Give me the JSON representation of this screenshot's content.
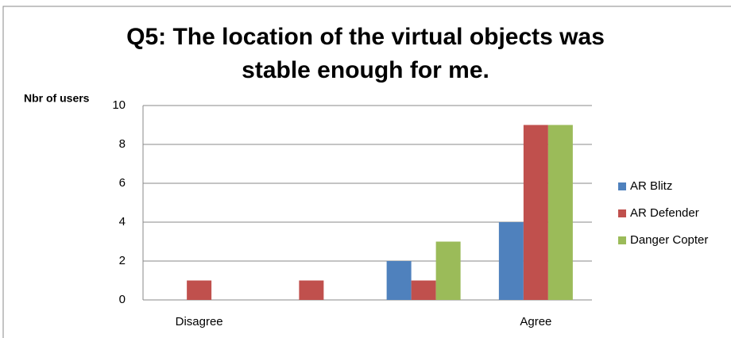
{
  "chart_data": {
    "type": "bar",
    "title": "Q5: The location of the virtual objects was stable enough for me.",
    "y_label": "Nbr of users",
    "categories": [
      "Disagree",
      null,
      null,
      "Agree"
    ],
    "series": [
      {
        "name": "AR Blitz",
        "color": "#4f81bd",
        "values": [
          0,
          0,
          2,
          4
        ]
      },
      {
        "name": "AR Defender",
        "color": "#c0504d",
        "values": [
          1,
          1,
          1,
          9
        ]
      },
      {
        "name": "Danger Copter",
        "color": "#9bbb59",
        "values": [
          0,
          0,
          3,
          9
        ]
      }
    ],
    "ylim": [
      0,
      10
    ],
    "yticks": [
      0,
      2,
      4,
      6,
      8,
      10
    ],
    "grid": true,
    "legend": "right"
  }
}
